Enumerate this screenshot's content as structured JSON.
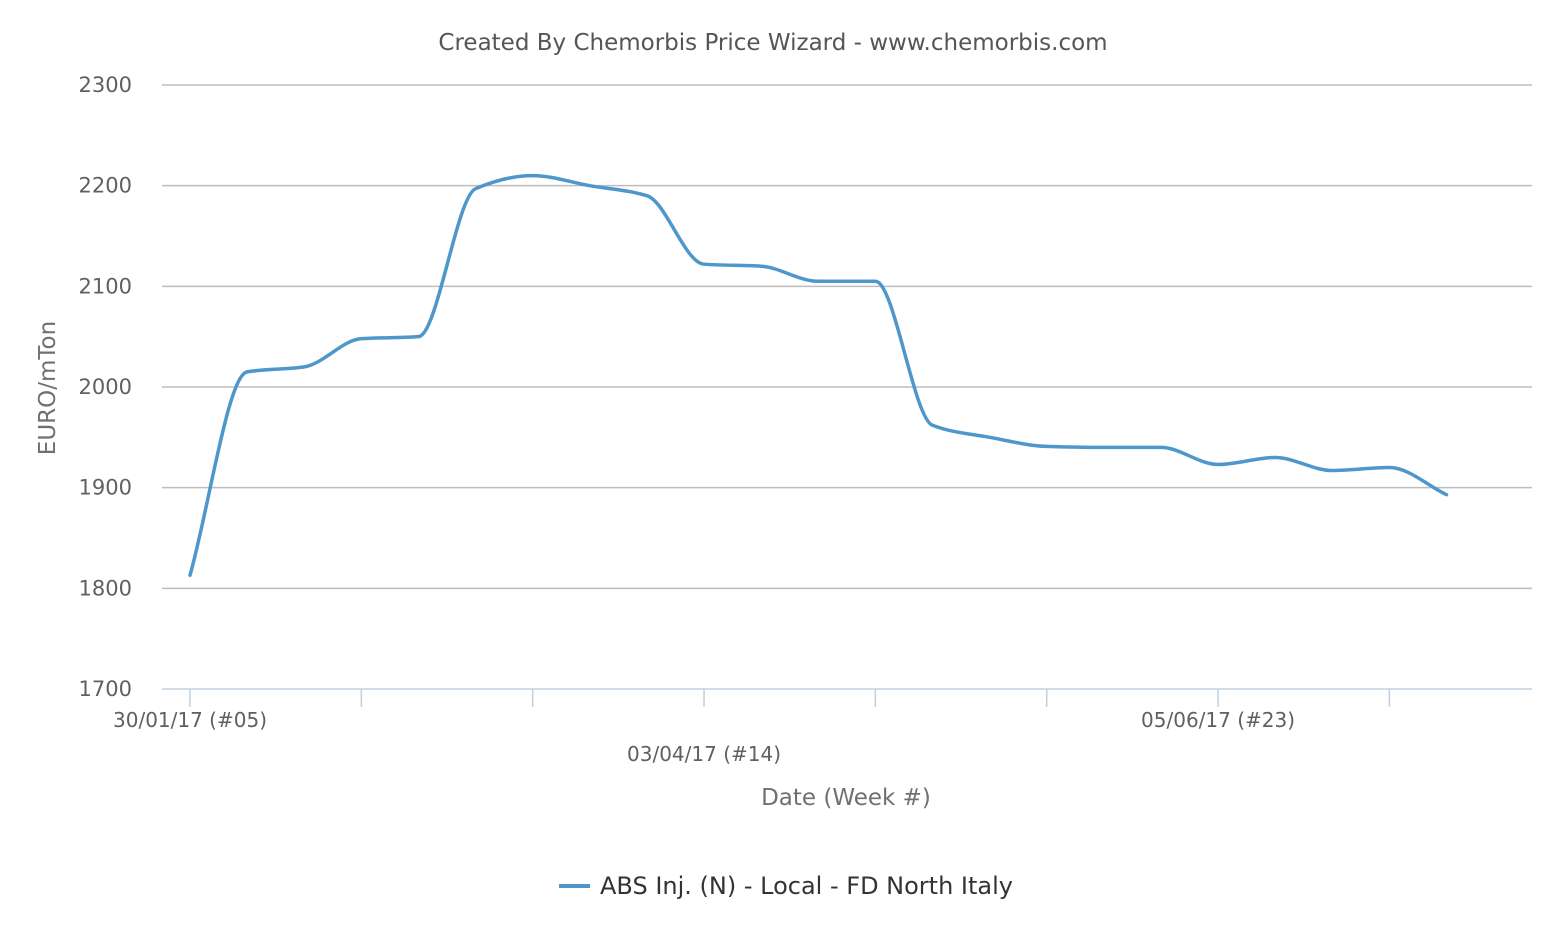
{
  "chart_data": {
    "type": "line",
    "title": "Created By Chemorbis Price Wizard - www.chemorbis.com",
    "xlabel": "Date (Week #)",
    "ylabel": "EURO/mTon",
    "ylim": [
      1700,
      2300
    ],
    "yticks": [
      1700,
      1800,
      1900,
      2000,
      2100,
      2200,
      2300
    ],
    "grid": true,
    "legend_position": "bottom-center",
    "x_week_range": [
      5,
      28
    ],
    "x_tick_weeks": [
      5,
      8,
      11,
      14,
      17,
      20,
      23,
      26
    ],
    "x_tick_labels": [
      {
        "week": 5,
        "label": "30/01/17 (#05)",
        "row": 0
      },
      {
        "week": 14,
        "label": "03/04/17 (#14)",
        "row": 1
      },
      {
        "week": 23,
        "label": "05/06/17 (#23)",
        "row": 0
      }
    ],
    "series": [
      {
        "name": "ABS Inj. (N) - Local - FD North Italy",
        "color": "#4e97cb",
        "weeks": [
          5,
          6,
          7,
          8,
          9,
          10,
          11,
          12,
          13,
          14,
          15,
          16,
          17,
          18,
          19,
          20,
          21,
          22,
          23,
          24,
          25,
          26,
          27
        ],
        "dates": [
          "30/01/17",
          "06/02/17",
          "13/02/17",
          "20/02/17",
          "27/02/17",
          "06/03/17",
          "13/03/17",
          "20/03/17",
          "27/03/17",
          "03/04/17",
          "10/04/17",
          "17/04/17",
          "24/04/17",
          "01/05/17",
          "08/05/17",
          "15/05/17",
          "22/05/17",
          "29/05/17",
          "05/06/17",
          "12/06/17",
          "19/06/17",
          "26/06/17",
          "03/07/17"
        ],
        "values": [
          1813,
          2015,
          2020,
          2048,
          2050,
          2197,
          2210,
          2200,
          2190,
          2122,
          2120,
          2105,
          2105,
          1962,
          1950,
          1941,
          1940,
          1940,
          1923,
          1930,
          1917,
          1920,
          1893
        ]
      }
    ]
  }
}
